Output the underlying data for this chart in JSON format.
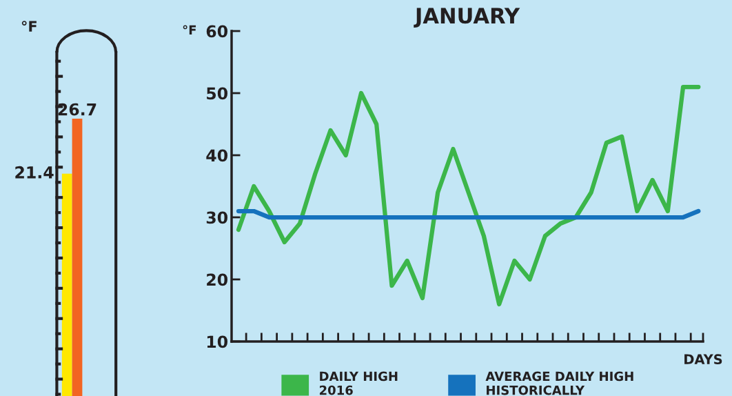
{
  "chart_data": [
    {
      "type": "bar",
      "ylabel": "°F",
      "categories": [
        null,
        null
      ],
      "values": [
        21.4,
        26.7
      ],
      "colors": [
        "#ffe800",
        "#f26522"
      ],
      "tick_labels": false,
      "data_labels": true,
      "grid": false
    },
    {
      "type": "line",
      "title": "JANUARY",
      "xlabel": "DAYS",
      "ylabel": "°F",
      "categories": [
        null,
        null,
        null,
        null,
        null,
        null,
        null,
        null,
        null,
        null,
        null,
        null,
        null,
        null,
        null,
        null,
        null,
        null,
        null,
        null,
        null,
        null,
        null,
        null,
        null,
        null,
        null,
        null,
        null,
        null,
        null
      ],
      "ylim": [
        10,
        60
      ],
      "yticks": [
        10,
        20,
        30,
        40,
        50,
        60
      ],
      "tick_labels": "y",
      "grid": false,
      "legend": "bottom",
      "marker": "none",
      "line_style": "solid",
      "series": [
        {
          "name": "DAILY HIGH\n2016",
          "color": "#3cb64a",
          "values": [
            28,
            35,
            31,
            26,
            29,
            37,
            44,
            40,
            50,
            45,
            19,
            23,
            17,
            34,
            41,
            34,
            27,
            16,
            23,
            20,
            27,
            29,
            30,
            34,
            42,
            43,
            31,
            36,
            31,
            51,
            51
          ]
        },
        {
          "name": "AVERAGE DAILY HIGH\nHISTORICALLY",
          "color": "#1572bd",
          "values": [
            31,
            31,
            30,
            30,
            30,
            30,
            30,
            30,
            30,
            30,
            30,
            30,
            30,
            30,
            30,
            30,
            30,
            30,
            30,
            30,
            30,
            30,
            30,
            30,
            30,
            30,
            30,
            30,
            30,
            30,
            31
          ]
        }
      ]
    }
  ]
}
